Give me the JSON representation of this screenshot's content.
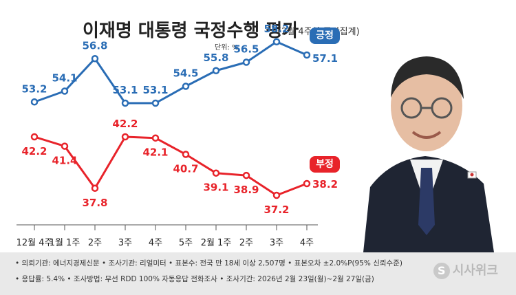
{
  "header": {
    "title": "이재명 대통령 국정수행 평가",
    "subtitle": "(2월 4주차 주간집계)",
    "unit": "단위: %"
  },
  "chart_data": {
    "type": "line",
    "title": "이재명 대통령 국정수행 평가",
    "subtitle": "(2월 4주차 주간집계)",
    "unit": "%",
    "categories": [
      "12월 4주",
      "1월 1주",
      "2주",
      "3주",
      "4주",
      "5주",
      "2월 1주",
      "2주",
      "3주",
      "4주"
    ],
    "series": [
      {
        "name": "긍정",
        "values": [
          53.2,
          54.1,
          56.8,
          53.1,
          53.1,
          54.5,
          55.8,
          56.5,
          58.2,
          57.1
        ],
        "labels": [
          "53.2",
          "54.1",
          "56.8",
          "53.1",
          "53.1",
          "54.5",
          "55.8",
          "56.5",
          "58.2",
          "57.1"
        ],
        "color": "#2a6db5"
      },
      {
        "name": "부정",
        "values": [
          42.2,
          41.4,
          37.8,
          42.2,
          42.1,
          40.7,
          39.1,
          38.9,
          37.2,
          38.2
        ],
        "labels": [
          "42.2",
          "41.4",
          "37.8",
          "42.2",
          "42.1",
          "40.7",
          "39.1",
          "38.9",
          "37.2",
          "38.2"
        ],
        "color": "#e8232a"
      }
    ],
    "grid": false
  },
  "footer": {
    "line1": "• 의뢰기관: 에너지경제신문 • 조사기관: 리얼미터 • 표본수: 전국 만 18세 이상 2,507명 • 표본오차 ±2.0%P(95% 신뢰수준)",
    "line2": "• 응답률: 5.4% • 조사방법: 무선 RDD 100% 자동응답 전화조사 • 조사기간: 2026년 2월 23일(월)~2월 27일(금)",
    "logo_mark": "S",
    "logo_text": "시사위크"
  }
}
